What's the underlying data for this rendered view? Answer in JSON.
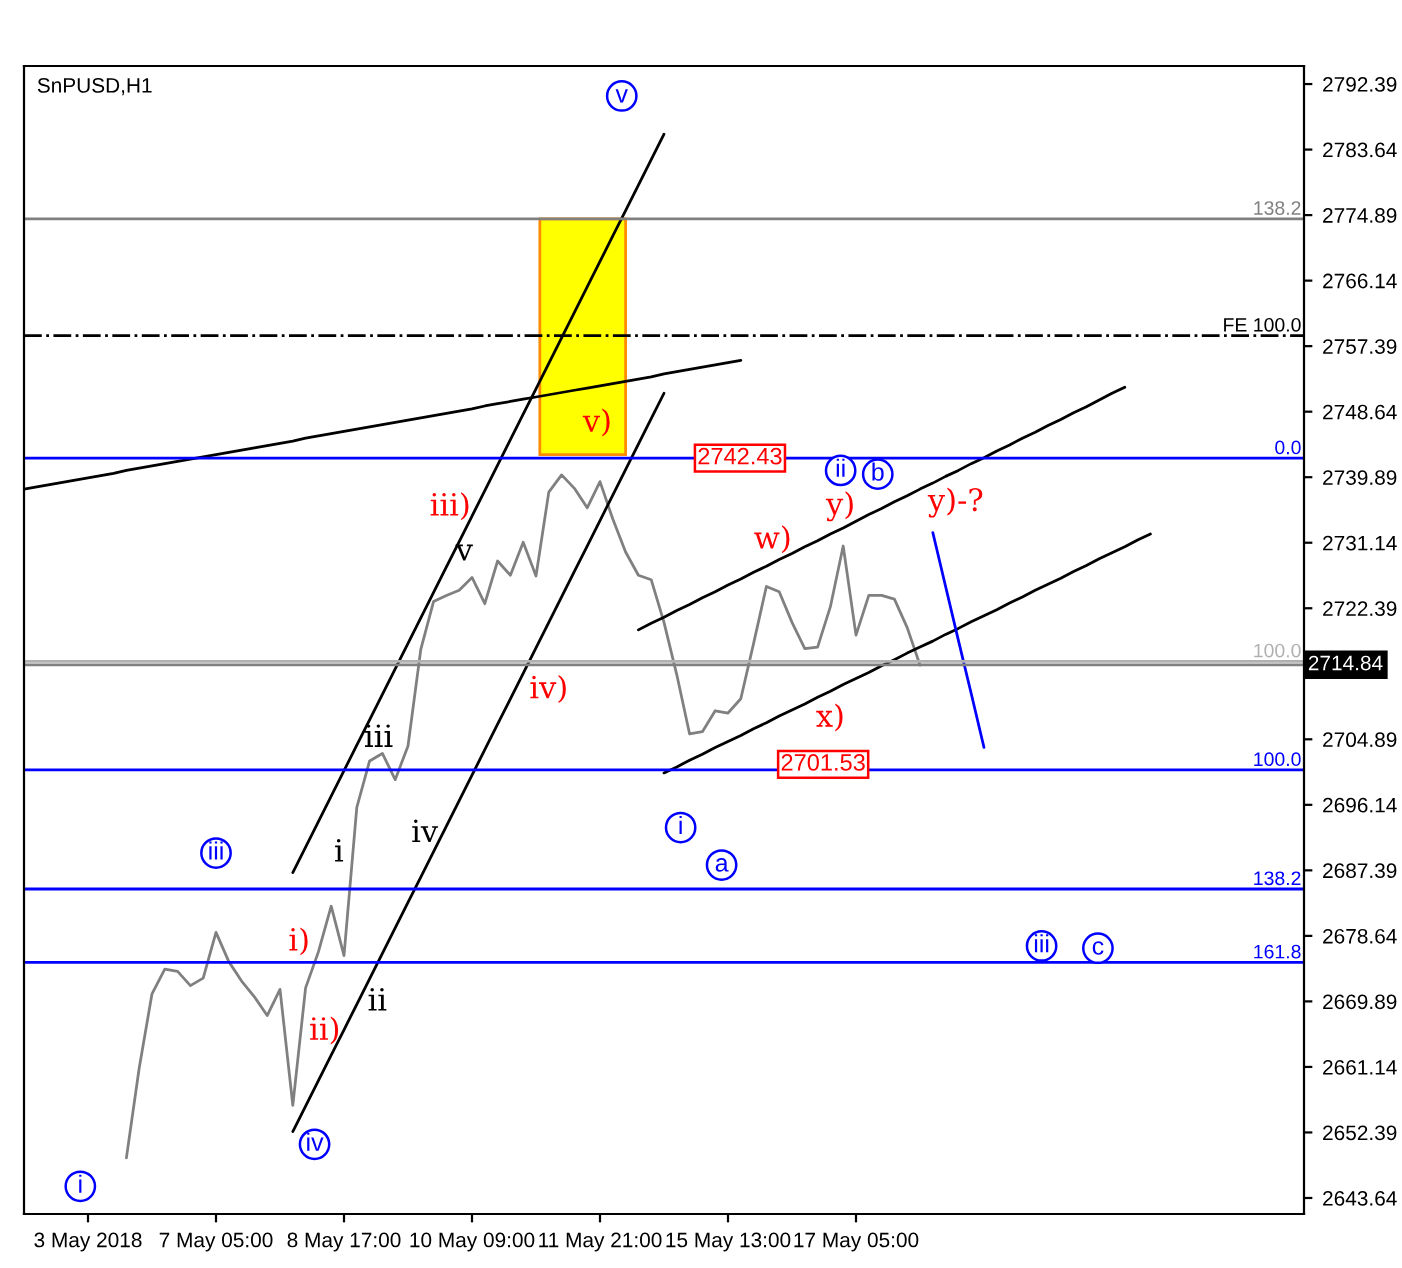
{
  "chart_data": {
    "type": "line",
    "title": "SnPUSD,H1",
    "categories": [
      null,
      null,
      null,
      null,
      null,
      "3 May 2018",
      null,
      null,
      null,
      null,
      null,
      null,
      null,
      null,
      null,
      "7 May 05:00",
      null,
      null,
      null,
      null,
      null,
      null,
      null,
      null,
      null,
      "8 May 17:00",
      null,
      null,
      null,
      null,
      null,
      null,
      null,
      null,
      null,
      "10 May 09:00",
      null,
      null,
      null,
      null,
      null,
      null,
      null,
      null,
      null,
      "11 May 21:00",
      null,
      null,
      null,
      null,
      null,
      null,
      null,
      null,
      null,
      "15 May 13:00",
      null,
      null,
      null,
      null,
      null,
      null,
      null,
      null,
      null,
      "17 May 05:00",
      null,
      null,
      null,
      null,
      null,
      null,
      null,
      null,
      null,
      null,
      null,
      null,
      null,
      null,
      null,
      null,
      null,
      null,
      null,
      null,
      null,
      null,
      null,
      null,
      null,
      null,
      null,
      null,
      null,
      null,
      null,
      null,
      null,
      null,
      null
    ],
    "ylim": [
      2641.5,
      2794.8
    ],
    "yticks": [
      2643.64,
      2652.39,
      2661.14,
      2669.89,
      2678.64,
      2687.39,
      2696.14,
      2704.89,
      2722.39,
      2731.14,
      2739.89,
      2748.64,
      2757.39,
      2766.14,
      2774.89,
      2783.64,
      2792.39
    ],
    "grid": false,
    "series": [
      {
        "color": "#808080",
        "values": [
          null,
          null,
          null,
          null,
          null,
          null,
          null,
          null,
          2649.0,
          2661.0,
          2670.9,
          2674.2,
          2673.9,
          2672.0,
          2673.0,
          2679.1,
          2675.2,
          2672.6,
          2670.5,
          2668.0,
          2671.5,
          2656.0,
          2671.7,
          2676.5,
          2682.6,
          2676.0,
          2695.8,
          2702.0,
          2703.0,
          2699.5,
          2704.0,
          2716.9,
          2723.3,
          2724.1,
          2724.8,
          2726.5,
          2723.0,
          2728.7,
          2726.8,
          2731.2,
          2726.7,
          2737.9,
          2740.2,
          2738.4,
          2735.8,
          2739.3,
          2734.3,
          2729.9,
          2726.8,
          2726.2,
          2720.5,
          2713.5,
          2705.6,
          2705.9,
          2708.7,
          2708.4,
          2710.3,
          2717.7,
          2725.3,
          2724.6,
          2720.5,
          2717.0,
          2717.2,
          2722.6,
          2730.7,
          2718.8,
          2724.1,
          2724.1,
          2723.6,
          2719.8,
          2714.8,
          null,
          null,
          null,
          null,
          null,
          null,
          null,
          null,
          null,
          null,
          null,
          null,
          null,
          null,
          null,
          null,
          null,
          null,
          null,
          null,
          null,
          null,
          null,
          null,
          null,
          null,
          null,
          null,
          null,
          null
        ]
      },
      {
        "color": "#000000",
        "values": [
          null,
          null,
          null,
          null,
          null,
          null,
          null,
          null,
          null,
          null,
          null,
          null,
          null,
          null,
          null,
          null,
          null,
          null,
          null,
          null,
          null,
          2687.1,
          2690.5,
          2693.9,
          2697.3,
          2700.7,
          2704.1,
          2707.5,
          2710.9,
          2714.3,
          2717.7,
          2721.1,
          2724.5,
          2727.9,
          2731.3,
          2734.7,
          2738.1,
          2741.5,
          2744.9,
          2748.3,
          2751.7,
          2755.1,
          2758.5,
          2761.9,
          2765.3,
          2768.7,
          2772.1,
          2775.5,
          2778.9,
          2782.3,
          2785.7,
          null,
          null,
          null,
          null,
          null,
          null,
          null,
          null,
          null,
          null,
          null,
          null,
          null,
          null,
          null,
          null,
          null,
          null,
          null,
          null,
          null,
          null,
          null,
          null,
          null,
          null,
          null,
          null,
          null,
          null,
          null,
          null,
          null,
          null,
          null,
          null,
          null,
          null,
          null,
          null,
          null,
          null,
          null,
          null,
          null,
          null,
          null,
          null,
          null,
          null
        ]
      },
      {
        "color": "#000000",
        "values": [
          null,
          null,
          null,
          null,
          null,
          null,
          null,
          null,
          null,
          null,
          null,
          null,
          null,
          null,
          null,
          null,
          null,
          null,
          null,
          null,
          null,
          2652.5,
          2655.9,
          2659.3,
          2662.7,
          2666.1,
          2669.5,
          2672.9,
          2676.3,
          2679.7,
          2683.1,
          2686.5,
          2689.9,
          2693.3,
          2696.7,
          2700.1,
          2703.5,
          2706.9,
          2710.3,
          2713.7,
          2717.1,
          2720.5,
          2723.9,
          2727.3,
          2730.7,
          2734.1,
          2737.5,
          2740.9,
          2744.3,
          2747.7,
          2751.1,
          null,
          null,
          null,
          null,
          null,
          null,
          null,
          null,
          null,
          null,
          null,
          null,
          null,
          null,
          null,
          null,
          null,
          null,
          null,
          null,
          null,
          null,
          null,
          null,
          null,
          null,
          null,
          null,
          null,
          null,
          null,
          null,
          null,
          null,
          null,
          null,
          null,
          null,
          null,
          null,
          null,
          null,
          null,
          null,
          null,
          null,
          null,
          null,
          null,
          null
        ]
      },
      {
        "color": "#000000",
        "values": [
          2738.3,
          2738.6,
          2738.9,
          2739.2,
          2739.5,
          2739.8,
          2740.1,
          2740.4,
          2740.8,
          2741.1,
          2741.4,
          2741.7,
          2742.0,
          2742.3,
          2742.6,
          2742.9,
          2743.2,
          2743.5,
          2743.8,
          2744.1,
          2744.4,
          2744.7,
          2745.1,
          2745.4,
          2745.7,
          2746.0,
          2746.3,
          2746.6,
          2746.9,
          2747.2,
          2747.5,
          2747.8,
          2748.1,
          2748.4,
          2748.7,
          2749.0,
          2749.4,
          2749.7,
          2750.0,
          2750.3,
          2750.6,
          2750.9,
          2751.2,
          2751.5,
          2751.8,
          2752.1,
          2752.4,
          2752.7,
          2753.0,
          2753.3,
          2753.7,
          2754.0,
          2754.3,
          2754.6,
          2754.9,
          2755.2,
          2755.5,
          null,
          null,
          null,
          null,
          null,
          null,
          null,
          null,
          null,
          null,
          null,
          null,
          null,
          null,
          null,
          null,
          null,
          null,
          null,
          null,
          null,
          null,
          null,
          null,
          null,
          null,
          null,
          null,
          null,
          null,
          null,
          null,
          null,
          null,
          null,
          null,
          null,
          null,
          null,
          null,
          null,
          null,
          null,
          null
        ]
      },
      {
        "color": "#000000",
        "values": [
          null,
          null,
          null,
          null,
          null,
          null,
          null,
          null,
          null,
          null,
          null,
          null,
          null,
          null,
          null,
          null,
          null,
          null,
          null,
          null,
          null,
          null,
          null,
          null,
          null,
          null,
          null,
          null,
          null,
          null,
          null,
          null,
          null,
          null,
          null,
          null,
          null,
          null,
          null,
          null,
          null,
          null,
          null,
          null,
          null,
          null,
          null,
          null,
          2719.5,
          2720.4,
          2721.2,
          2722.1,
          2722.9,
          2723.8,
          2724.6,
          2725.5,
          2726.3,
          2727.2,
          2728.0,
          2728.9,
          2729.7,
          2730.6,
          2731.4,
          2732.3,
          2733.1,
          2734.0,
          2734.9,
          2735.7,
          2736.6,
          2737.4,
          2738.3,
          2739.1,
          2740.0,
          2740.8,
          2741.7,
          2742.5,
          2743.4,
          2744.2,
          2745.1,
          2745.9,
          2746.8,
          2747.6,
          2748.5,
          2749.3,
          2750.2,
          2751.1,
          2751.9,
          null,
          null,
          null,
          null,
          null,
          null,
          null,
          null,
          null,
          null,
          null,
          null,
          null,
          null
        ]
      },
      {
        "color": "#000000",
        "values": [
          null,
          null,
          null,
          null,
          null,
          null,
          null,
          null,
          null,
          null,
          null,
          null,
          null,
          null,
          null,
          null,
          null,
          null,
          null,
          null,
          null,
          null,
          null,
          null,
          null,
          null,
          null,
          null,
          null,
          null,
          null,
          null,
          null,
          null,
          null,
          null,
          null,
          null,
          null,
          null,
          null,
          null,
          null,
          null,
          null,
          null,
          null,
          null,
          null,
          null,
          2700.4,
          2701.2,
          2702.1,
          2702.9,
          2703.8,
          2704.6,
          2705.4,
          2706.3,
          2707.1,
          2708.0,
          2708.8,
          2709.6,
          2710.5,
          2711.3,
          2712.2,
          2713.0,
          2713.8,
          2714.7,
          2715.5,
          2716.4,
          2717.2,
          2718.0,
          2718.9,
          2719.7,
          2720.6,
          2721.4,
          2722.2,
          2723.1,
          2723.9,
          2724.8,
          2725.6,
          2726.4,
          2727.3,
          2728.1,
          2729.0,
          2729.8,
          2730.6,
          2731.5,
          2732.3,
          null,
          null,
          null,
          null,
          null,
          null,
          null,
          null,
          null,
          null,
          null,
          null
        ]
      },
      {
        "color": "#0000ff",
        "values": [
          null,
          null,
          null,
          null,
          null,
          null,
          null,
          null,
          null,
          null,
          null,
          null,
          null,
          null,
          null,
          null,
          null,
          null,
          null,
          null,
          null,
          null,
          null,
          null,
          null,
          null,
          null,
          null,
          null,
          null,
          null,
          null,
          null,
          null,
          null,
          null,
          null,
          null,
          null,
          null,
          null,
          null,
          null,
          null,
          null,
          null,
          null,
          null,
          null,
          null,
          null,
          null,
          null,
          null,
          null,
          null,
          null,
          null,
          null,
          null,
          null,
          null,
          null,
          null,
          null,
          null,
          null,
          null,
          null,
          null,
          null,
          2732.5,
          2725.3,
          2718.1,
          2711.0,
          2703.8,
          null,
          null,
          null,
          null,
          null,
          null,
          null,
          null,
          null,
          null,
          null,
          null,
          null,
          null,
          null,
          null,
          null,
          null,
          null,
          null,
          null,
          null,
          null,
          null,
          null
        ]
      }
    ],
    "ref_lines": [
      {
        "axis": "y",
        "value": 2774.4,
        "color": "#808080",
        "line_style": "solid"
      },
      {
        "axis": "y",
        "value": 2758.8,
        "color": "#000000",
        "line_style": "dashdot"
      },
      {
        "axis": "y",
        "value": 2742.43,
        "color": "#0000ff",
        "line_style": "solid"
      },
      {
        "axis": "y",
        "value": 2715.3,
        "color": "#b0b0b0",
        "line_style": "solid"
      },
      {
        "axis": "y",
        "value": 2714.84,
        "label": "2714.84",
        "color": "#808080",
        "line_style": "solid"
      },
      {
        "axis": "y",
        "value": 2700.8,
        "color": "#0000ff",
        "line_style": "solid"
      },
      {
        "axis": "y",
        "value": 2684.9,
        "color": "#0000ff",
        "line_style": "solid"
      },
      {
        "axis": "y",
        "value": 2675.1,
        "color": "#0000ff",
        "line_style": "solid"
      }
    ],
    "annotations": [
      "v",
      "v)",
      "iii)",
      "v",
      "iv)",
      "iii",
      "i",
      "iv",
      "ii",
      "i)",
      "ii)",
      "iii",
      "iv",
      "i",
      "w)",
      "y)",
      "ii",
      "b",
      "x)",
      "y)-?",
      "i",
      "a",
      "iii",
      "c",
      {
        "text": "2742.43",
        "y": 2742.43
      },
      {
        "text": "2701.53",
        "y": 2701.53
      },
      "138.2",
      "FE 100.0",
      "0.0",
      "100.0",
      "100.0",
      "138.2",
      "161.8"
    ]
  }
}
